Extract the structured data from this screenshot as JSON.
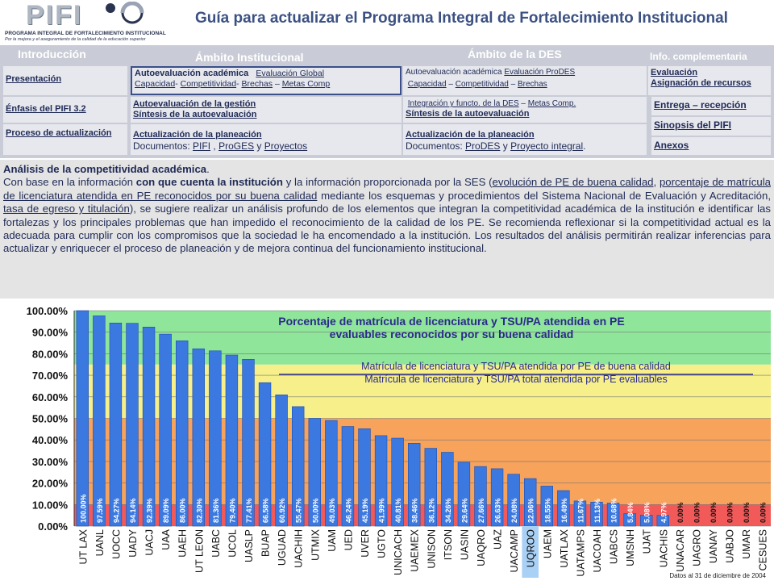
{
  "header": {
    "logo_word": "PIFI",
    "logo_sub1": "PROGRAMA INTEGRAL DE FORTALECIMIENTO INSTITUCIONAL",
    "logo_sub2": "Por la mejora y el aseguramiento de la calidad de la educación superior",
    "title": "Guía para actualizar el Programa Integral de Fortalecimiento Institucional"
  },
  "nav": {
    "head_intro": "Introducción",
    "head_inst": "Ámbito Institucional",
    "head_des": "Ámbito de la DES",
    "head_info": "Info. complementaria",
    "presentacion": "Presentación",
    "enfasis": "Énfasis del PIFI 3.2",
    "proceso": "Proceso de actualización",
    "inst_r1_a": "Autoevaluación académica",
    "inst_r1_b": "Evaluación Global",
    "inst_r1_c": "Capacidad",
    "inst_r1_d": "Competitividad",
    "inst_r1_e": "Brechas",
    "inst_r1_f": "Metas Comp",
    "inst_r2_a": "Autoevaluación de la gestión",
    "inst_r2_b": "Síntesis de la autoevaluación",
    "inst_r3_a": "Actualización de la planeación",
    "inst_r3_b": "Documentos:",
    "inst_r3_c": "PIFI",
    "inst_r3_d": "ProGES",
    "inst_r3_e": "Proyectos",
    "des_r1_a": "Autoevaluación  académica",
    "des_r1_b": "Evaluación ProDES",
    "des_r1_c": "Capacidad",
    "des_r1_d": "Competitividad",
    "des_r1_e": "Brechas",
    "des_r2_a": "Integración y functo. de la DES",
    "des_r2_b": "Metas Comp.",
    "des_r2_c": "Síntesis de la autoevaluación",
    "des_r3_a": "Actualización de la planeación",
    "des_r3_b": "Documentos:",
    "des_r3_c": "ProDES",
    "des_r3_d": "Proyecto integral",
    "info_evaluacion": "Evaluación",
    "info_asignacion": "Asignación de recursos",
    "info_entrega": "Entrega – recepción",
    "info_sinopsis": "Sinopsis del PIFI",
    "info_anexos": "Anexos"
  },
  "analysis": {
    "heading": "Análisis de la competitividad académica",
    "t1": "Con base en la información ",
    "t2": "con que cuenta la institución",
    "t3": " y la información proporcionada por la SES (",
    "l1": "evolución de PE de buena calidad",
    "t4": ", ",
    "l2": "porcentaje de matrícula de licenciatura atendida en PE reconocidos por su buena calidad",
    "t5": " mediante los esquemas y procedimientos del Sistema Nacional de Evaluación y Acreditación, ",
    "l3": "tasa de egreso y titulación",
    "t6": "), se sugiere realizar un análisis profundo de los elementos que integran la competitividad académica de la institución e identificar las fortalezas y los principales problemas que han impedido el reconocimiento de la calidad de los PE. Se recomienda reflexionar si la competitividad actual es la adecuada para cumplir con los compromisos que la sociedad le ha encomendado a la institución. Los resultados del análisis permitirán realizar inferencias para actualizar y enriquecer el proceso de planeación  y de mejora continua del funcionamiento  institucional."
  },
  "chart_data": {
    "type": "bar",
    "title_line1": "Porcentaje de matrícula de licenciatura y TSU/PA atendida en PE",
    "title_line2": "evaluables reconocidos por su buena calidad",
    "legend_line1": "Matrícula de licenciatura y TSU/PA atendida por PE de buena calidad",
    "legend_line2": "Matrícula de licenciatura y TSU/PA total atendida por PE evaluables",
    "footnote": "Datos al 31 de diciembre de 2004",
    "ylim": [
      0,
      100
    ],
    "yticks": [
      "0.00%",
      "10.00%",
      "20.00%",
      "30.00%",
      "40.00%",
      "50.00%",
      "60.00%",
      "70.00%",
      "80.00%",
      "90.00%",
      "100.00%"
    ],
    "bands": [
      {
        "from": 0,
        "to": 10,
        "color": "#f25a5a"
      },
      {
        "from": 10,
        "to": 50,
        "color": "#f7a35c"
      },
      {
        "from": 50,
        "to": 75,
        "color": "#f7f08a"
      },
      {
        "from": 75,
        "to": 100,
        "color": "#8fe59a"
      }
    ],
    "bar_color": "#3b78e0",
    "highlight_category": "UQROO",
    "highlight_color": "#a9d0f5",
    "categories": [
      "UT LAX",
      "UANL",
      "UOCC",
      "UADY",
      "UACJ",
      "UAA",
      "UAEH",
      "UT LEON",
      "UABC",
      "UCOL",
      "UASLP",
      "BUAP",
      "UGUAD",
      "UACHIH",
      "UTMIX",
      "UAM",
      "UED",
      "UVER",
      "UGTO",
      "UNICACH",
      "UAEMEX",
      "UNISON",
      "ITSON",
      "UASIN",
      "UAQRO",
      "UAZ",
      "UACAMP",
      "UQROO",
      "UAEM",
      "UATLAX",
      "UATAMPS",
      "UACOAH",
      "UABCS",
      "UMSNH",
      "UJAT",
      "UACHIS",
      "UNACAR",
      "UAGRO",
      "UANAY",
      "UABJO",
      "UMAR",
      "CESUES"
    ],
    "values": [
      100.0,
      97.59,
      94.27,
      94.14,
      92.39,
      89.09,
      86.0,
      82.3,
      81.36,
      79.4,
      77.41,
      66.58,
      60.92,
      55.47,
      50.0,
      49.03,
      46.24,
      45.19,
      41.99,
      40.81,
      38.46,
      36.12,
      34.26,
      29.64,
      27.66,
      26.63,
      24.08,
      22.06,
      18.55,
      16.49,
      11.67,
      11.13,
      10.68,
      5.84,
      5.08,
      4.97,
      0.0,
      0.0,
      0.0,
      0.0,
      0.0,
      0.0
    ],
    "value_labels": [
      "100.00%",
      "97.59%",
      "94.27%",
      "94.14%",
      "92.39%",
      "89.09%",
      "86.00%",
      "82.30%",
      "81.36%",
      "79.40%",
      "77.41%",
      "66.58%",
      "60.92%",
      "55.47%",
      "50.00%",
      "49.03%",
      "46.24%",
      "45.19%",
      "41.99%",
      "40.81%",
      "38.46%",
      "36.12%",
      "34.26%",
      "29.64%",
      "27.66%",
      "26.63%",
      "24.08%",
      "22.06%",
      "18.55%",
      "16.49%",
      "11.67%",
      "11.13%",
      "10.68%",
      "5.84%",
      "5.08%",
      "4.97%",
      "0.00%",
      "0.00%",
      "0.00%",
      "0.00%",
      "0.00%",
      "0.00%"
    ]
  }
}
